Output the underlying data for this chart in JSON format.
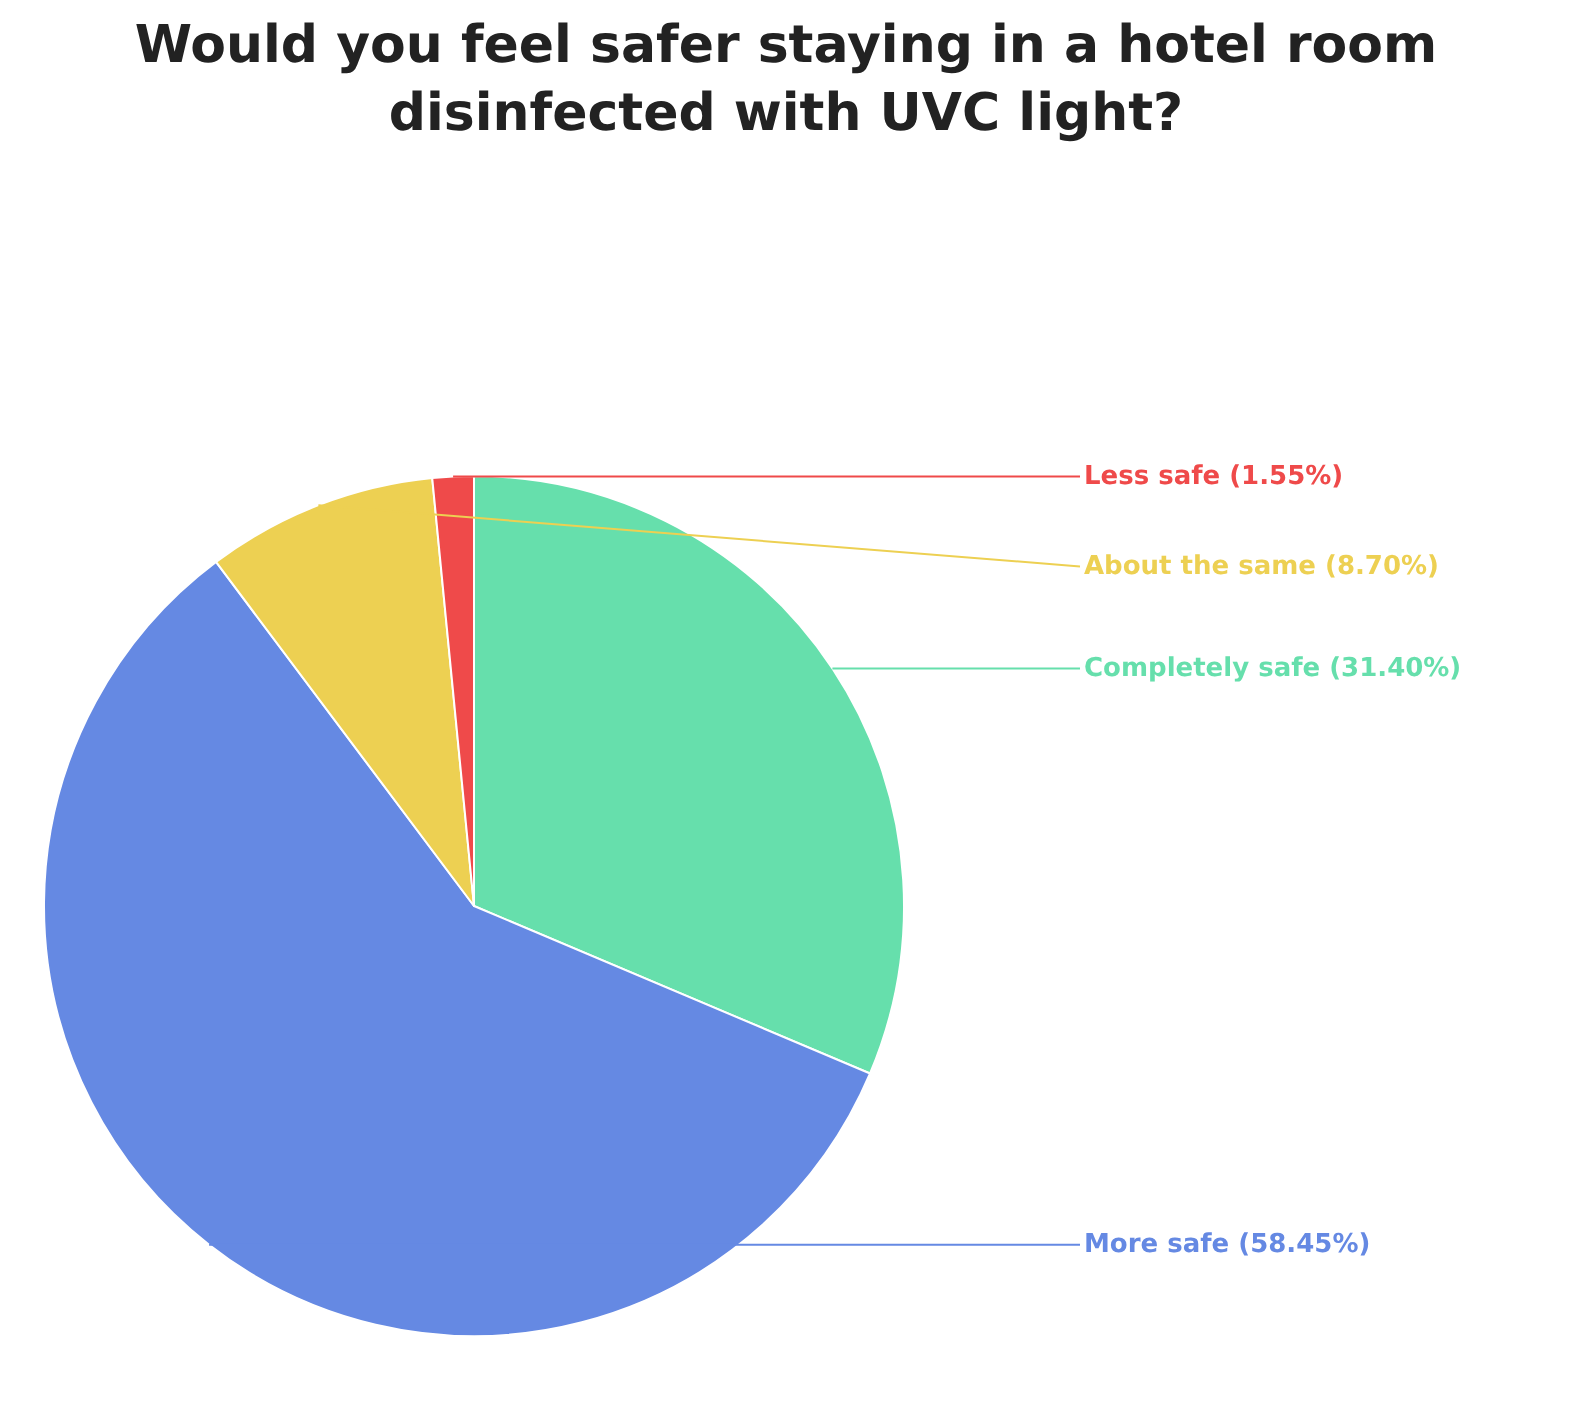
{
  "chart_data": {
    "type": "pie",
    "title": "Would you feel safer staying in a hotel room\ndisinfected with UVC light?",
    "categories": [
      "Completely safe",
      "More safe",
      "About the same",
      "Less safe"
    ],
    "values": [
      31.4,
      58.45,
      8.7,
      1.55
    ],
    "value_labels": [
      "(31.40%)",
      "(58.45%)",
      "(8.70%)",
      "(1.55%)"
    ],
    "colors": [
      "#66dfac",
      "#6589e3",
      "#edd052",
      "#ef4a4a"
    ],
    "legend": false
  }
}
